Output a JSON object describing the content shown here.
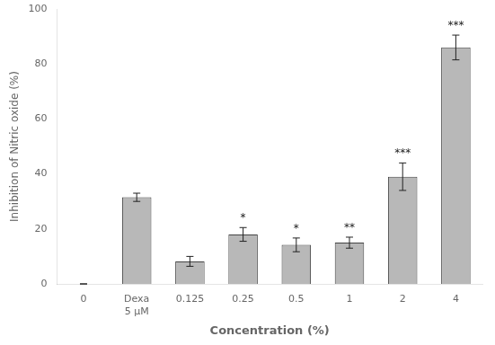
{
  "chart_data": {
    "type": "bar",
    "categories": [
      "0",
      "Dexa\n5 μM",
      "0.125",
      "0.25",
      "0.5",
      "1",
      "2",
      "4"
    ],
    "values": [
      0,
      31.5,
      8.2,
      18.0,
      14.2,
      15.0,
      39.0,
      86.0
    ],
    "errors": [
      0,
      1.5,
      1.8,
      2.5,
      2.5,
      2.0,
      5.0,
      4.5
    ],
    "annotations": [
      {
        "category": "0.25",
        "text": "*"
      },
      {
        "category": "0.5",
        "text": "*"
      },
      {
        "category": "1",
        "text": "**"
      },
      {
        "category": "2",
        "text": "***"
      },
      {
        "category": "4",
        "text": "***"
      }
    ],
    "color": "#b8b8b8",
    "xlabel": "Concentration (%)",
    "ylabel": "Inhibition of Nitric oxide (%)",
    "ylim": [
      0,
      100
    ],
    "yticks": [
      0,
      20,
      40,
      60,
      80,
      100
    ],
    "grid": false
  }
}
